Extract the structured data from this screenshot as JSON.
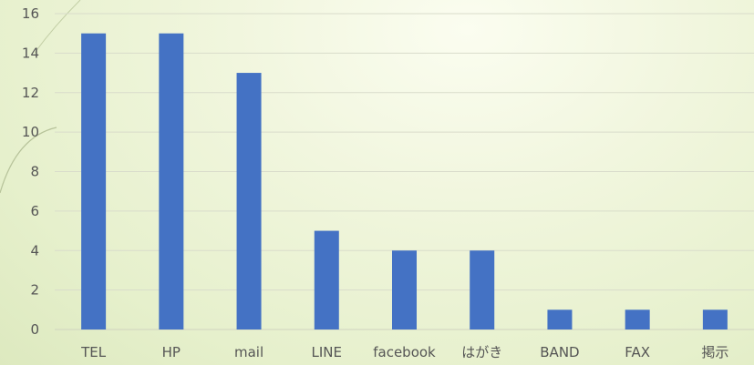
{
  "chart_data": {
    "type": "bar",
    "title": "",
    "xlabel": "",
    "ylabel": "",
    "categories": [
      "TEL",
      "HP",
      "mail",
      "LINE",
      "facebook",
      "はがき",
      "BAND",
      "FAX",
      "掲示"
    ],
    "values": [
      15,
      15,
      13,
      5,
      4,
      4,
      1,
      1,
      1
    ],
    "ylim": [
      0,
      16
    ],
    "y_ticks": [
      0,
      2,
      4,
      6,
      8,
      10,
      12,
      14,
      16
    ],
    "grid": true,
    "legend": "none",
    "bar_color": "#4472c4"
  }
}
